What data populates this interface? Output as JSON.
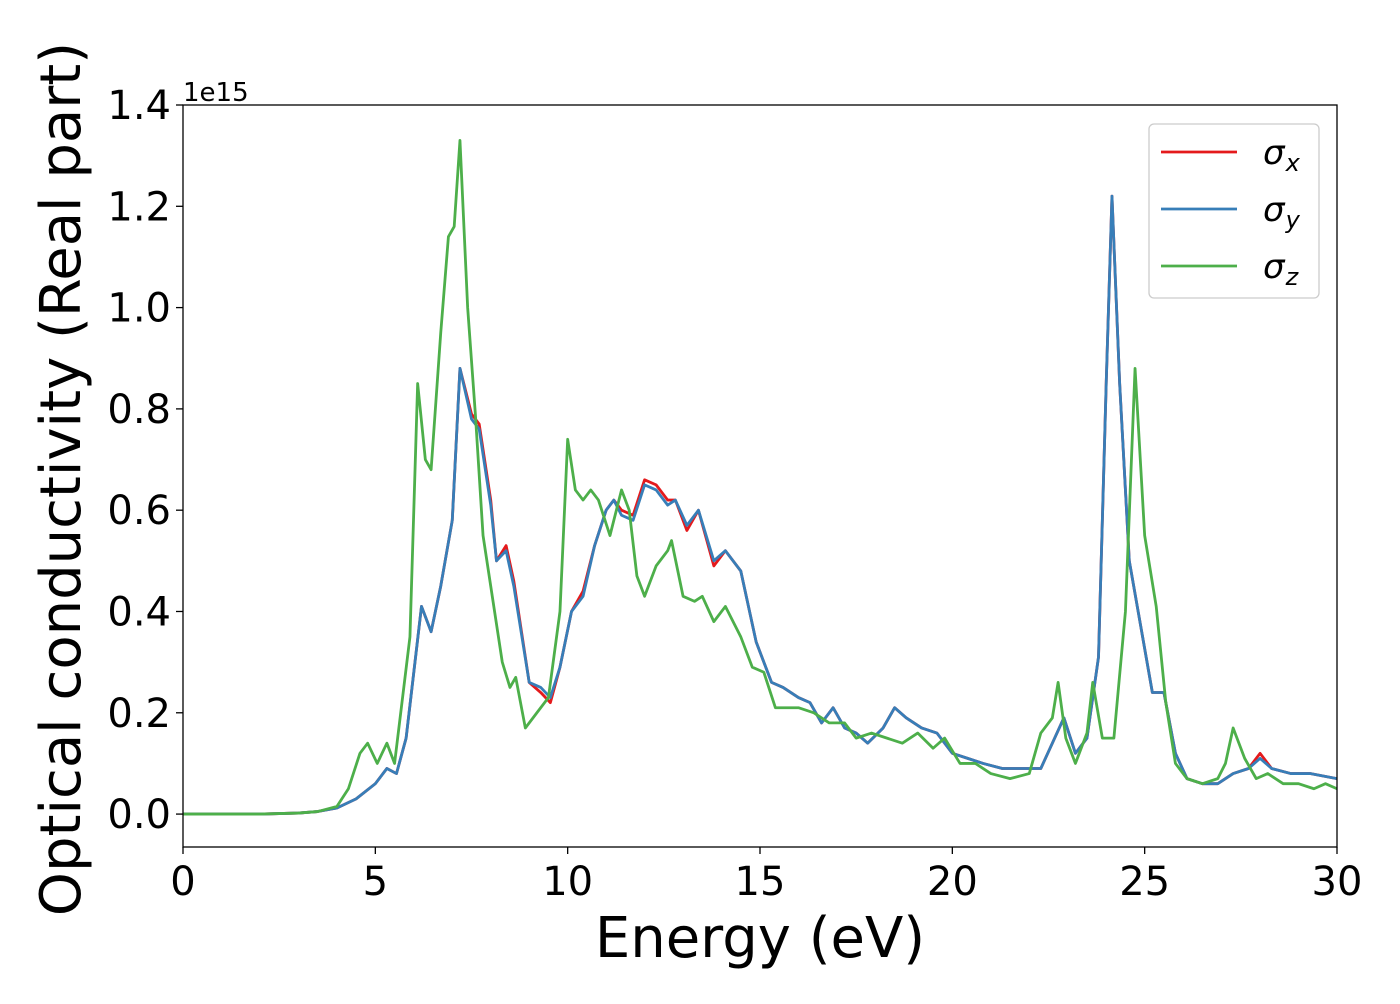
{
  "chart_data": {
    "type": "line",
    "title": "",
    "xlabel": "Energy (eV)",
    "ylabel": "Optical conductivity (Real part)",
    "y_offset_label": "1e15",
    "xlim": [
      0,
      30
    ],
    "ylim": [
      -0.065,
      1.4
    ],
    "x_ticks": [
      0,
      5,
      10,
      15,
      20,
      25,
      30
    ],
    "y_ticks": [
      0.0,
      0.2,
      0.4,
      0.6,
      0.8,
      1.0,
      1.2,
      1.4
    ],
    "y_tick_labels": [
      "0.0",
      "0.2",
      "0.4",
      "0.6",
      "0.8",
      "1.0",
      "1.2",
      "1.4"
    ],
    "grid": false,
    "legend_placement": "top-right",
    "series": [
      {
        "name": "σx",
        "legend_symbol": "σ",
        "legend_subscript": "x",
        "color": "#e41a1c",
        "points": [
          [
            0,
            0
          ],
          [
            2,
            0
          ],
          [
            3,
            0.002
          ],
          [
            3.5,
            0.005
          ],
          [
            4,
            0.012
          ],
          [
            4.5,
            0.03
          ],
          [
            5,
            0.06
          ],
          [
            5.3,
            0.09
          ],
          [
            5.55,
            0.08
          ],
          [
            5.8,
            0.15
          ],
          [
            6,
            0.28
          ],
          [
            6.2,
            0.41
          ],
          [
            6.45,
            0.36
          ],
          [
            6.7,
            0.45
          ],
          [
            7,
            0.58
          ],
          [
            7.2,
            0.88
          ],
          [
            7.5,
            0.79
          ],
          [
            7.7,
            0.77
          ],
          [
            8,
            0.62
          ],
          [
            8.15,
            0.5
          ],
          [
            8.4,
            0.53
          ],
          [
            8.6,
            0.46
          ],
          [
            9,
            0.26
          ],
          [
            9.3,
            0.24
          ],
          [
            9.55,
            0.22
          ],
          [
            9.8,
            0.29
          ],
          [
            10.1,
            0.4
          ],
          [
            10.4,
            0.44
          ],
          [
            10.7,
            0.53
          ],
          [
            11,
            0.6
          ],
          [
            11.2,
            0.62
          ],
          [
            11.4,
            0.6
          ],
          [
            11.7,
            0.59
          ],
          [
            12,
            0.66
          ],
          [
            12.3,
            0.65
          ],
          [
            12.6,
            0.62
          ],
          [
            12.8,
            0.62
          ],
          [
            13.1,
            0.56
          ],
          [
            13.4,
            0.6
          ],
          [
            13.8,
            0.49
          ],
          [
            14.1,
            0.52
          ],
          [
            14.5,
            0.48
          ],
          [
            14.9,
            0.34
          ],
          [
            15.3,
            0.26
          ],
          [
            15.6,
            0.25
          ],
          [
            16,
            0.23
          ],
          [
            16.3,
            0.22
          ],
          [
            16.6,
            0.18
          ],
          [
            16.9,
            0.21
          ],
          [
            17.2,
            0.17
          ],
          [
            17.5,
            0.16
          ],
          [
            17.8,
            0.14
          ],
          [
            18.2,
            0.17
          ],
          [
            18.5,
            0.21
          ],
          [
            18.8,
            0.19
          ],
          [
            19.2,
            0.17
          ],
          [
            19.6,
            0.16
          ],
          [
            20,
            0.12
          ],
          [
            20.4,
            0.11
          ],
          [
            20.8,
            0.1
          ],
          [
            21.3,
            0.09
          ],
          [
            21.8,
            0.09
          ],
          [
            22.3,
            0.09
          ],
          [
            22.6,
            0.14
          ],
          [
            22.9,
            0.19
          ],
          [
            23.2,
            0.12
          ],
          [
            23.5,
            0.15
          ],
          [
            23.8,
            0.31
          ],
          [
            24,
            0.85
          ],
          [
            24.15,
            1.22
          ],
          [
            24.35,
            0.85
          ],
          [
            24.6,
            0.5
          ],
          [
            24.9,
            0.37
          ],
          [
            25.2,
            0.24
          ],
          [
            25.5,
            0.24
          ],
          [
            25.8,
            0.12
          ],
          [
            26.1,
            0.07
          ],
          [
            26.5,
            0.06
          ],
          [
            26.9,
            0.06
          ],
          [
            27.3,
            0.08
          ],
          [
            27.7,
            0.09
          ],
          [
            28,
            0.12
          ],
          [
            28.3,
            0.09
          ],
          [
            28.8,
            0.08
          ],
          [
            29.3,
            0.08
          ],
          [
            30,
            0.07
          ]
        ]
      },
      {
        "name": "σy",
        "legend_symbol": "σ",
        "legend_subscript": "y",
        "color": "#377eb8",
        "points": [
          [
            0,
            0
          ],
          [
            2,
            0
          ],
          [
            3,
            0.002
          ],
          [
            3.5,
            0.005
          ],
          [
            4,
            0.012
          ],
          [
            4.5,
            0.03
          ],
          [
            5,
            0.06
          ],
          [
            5.3,
            0.09
          ],
          [
            5.55,
            0.08
          ],
          [
            5.8,
            0.15
          ],
          [
            6,
            0.28
          ],
          [
            6.2,
            0.41
          ],
          [
            6.45,
            0.36
          ],
          [
            6.7,
            0.45
          ],
          [
            7,
            0.58
          ],
          [
            7.2,
            0.88
          ],
          [
            7.5,
            0.78
          ],
          [
            7.7,
            0.76
          ],
          [
            8,
            0.61
          ],
          [
            8.15,
            0.5
          ],
          [
            8.4,
            0.52
          ],
          [
            8.6,
            0.45
          ],
          [
            9,
            0.26
          ],
          [
            9.3,
            0.25
          ],
          [
            9.55,
            0.23
          ],
          [
            9.8,
            0.29
          ],
          [
            10.1,
            0.4
          ],
          [
            10.4,
            0.43
          ],
          [
            10.7,
            0.53
          ],
          [
            11,
            0.6
          ],
          [
            11.2,
            0.62
          ],
          [
            11.4,
            0.59
          ],
          [
            11.7,
            0.58
          ],
          [
            12,
            0.65
          ],
          [
            12.3,
            0.64
          ],
          [
            12.6,
            0.61
          ],
          [
            12.8,
            0.62
          ],
          [
            13.1,
            0.57
          ],
          [
            13.4,
            0.6
          ],
          [
            13.8,
            0.5
          ],
          [
            14.1,
            0.52
          ],
          [
            14.5,
            0.48
          ],
          [
            14.9,
            0.34
          ],
          [
            15.3,
            0.26
          ],
          [
            15.6,
            0.25
          ],
          [
            16,
            0.23
          ],
          [
            16.3,
            0.22
          ],
          [
            16.6,
            0.18
          ],
          [
            16.9,
            0.21
          ],
          [
            17.2,
            0.17
          ],
          [
            17.5,
            0.16
          ],
          [
            17.8,
            0.14
          ],
          [
            18.2,
            0.17
          ],
          [
            18.5,
            0.21
          ],
          [
            18.8,
            0.19
          ],
          [
            19.2,
            0.17
          ],
          [
            19.6,
            0.16
          ],
          [
            20,
            0.12
          ],
          [
            20.4,
            0.11
          ],
          [
            20.8,
            0.1
          ],
          [
            21.3,
            0.09
          ],
          [
            21.8,
            0.09
          ],
          [
            22.3,
            0.09
          ],
          [
            22.6,
            0.14
          ],
          [
            22.9,
            0.19
          ],
          [
            23.2,
            0.12
          ],
          [
            23.5,
            0.15
          ],
          [
            23.8,
            0.31
          ],
          [
            24,
            0.85
          ],
          [
            24.15,
            1.22
          ],
          [
            24.35,
            0.85
          ],
          [
            24.6,
            0.5
          ],
          [
            24.9,
            0.37
          ],
          [
            25.2,
            0.24
          ],
          [
            25.5,
            0.24
          ],
          [
            25.8,
            0.12
          ],
          [
            26.1,
            0.07
          ],
          [
            26.5,
            0.06
          ],
          [
            26.9,
            0.06
          ],
          [
            27.3,
            0.08
          ],
          [
            27.7,
            0.09
          ],
          [
            28,
            0.11
          ],
          [
            28.3,
            0.09
          ],
          [
            28.8,
            0.08
          ],
          [
            29.3,
            0.08
          ],
          [
            30,
            0.07
          ]
        ]
      },
      {
        "name": "σz",
        "legend_symbol": "σ",
        "legend_subscript": "z",
        "color": "#4daf4a",
        "points": [
          [
            0,
            0
          ],
          [
            2,
            0
          ],
          [
            3,
            0.002
          ],
          [
            3.5,
            0.005
          ],
          [
            4,
            0.015
          ],
          [
            4.3,
            0.05
          ],
          [
            4.6,
            0.12
          ],
          [
            4.8,
            0.14
          ],
          [
            5.05,
            0.1
          ],
          [
            5.3,
            0.14
          ],
          [
            5.5,
            0.1
          ],
          [
            5.9,
            0.35
          ],
          [
            6.1,
            0.85
          ],
          [
            6.3,
            0.7
          ],
          [
            6.45,
            0.68
          ],
          [
            6.7,
            0.95
          ],
          [
            6.9,
            1.14
          ],
          [
            7.05,
            1.16
          ],
          [
            7.2,
            1.33
          ],
          [
            7.4,
            1.0
          ],
          [
            7.6,
            0.79
          ],
          [
            7.8,
            0.55
          ],
          [
            8.1,
            0.4
          ],
          [
            8.3,
            0.3
          ],
          [
            8.5,
            0.25
          ],
          [
            8.65,
            0.27
          ],
          [
            8.9,
            0.17
          ],
          [
            9.2,
            0.2
          ],
          [
            9.5,
            0.23
          ],
          [
            9.8,
            0.4
          ],
          [
            10,
            0.74
          ],
          [
            10.2,
            0.64
          ],
          [
            10.4,
            0.62
          ],
          [
            10.6,
            0.64
          ],
          [
            10.8,
            0.62
          ],
          [
            11.1,
            0.55
          ],
          [
            11.4,
            0.64
          ],
          [
            11.6,
            0.6
          ],
          [
            11.8,
            0.47
          ],
          [
            12,
            0.43
          ],
          [
            12.3,
            0.49
          ],
          [
            12.6,
            0.52
          ],
          [
            12.7,
            0.54
          ],
          [
            13,
            0.43
          ],
          [
            13.3,
            0.42
          ],
          [
            13.5,
            0.43
          ],
          [
            13.8,
            0.38
          ],
          [
            14.1,
            0.41
          ],
          [
            14.5,
            0.35
          ],
          [
            14.8,
            0.29
          ],
          [
            15.1,
            0.28
          ],
          [
            15.4,
            0.21
          ],
          [
            15.7,
            0.21
          ],
          [
            16,
            0.21
          ],
          [
            16.4,
            0.2
          ],
          [
            16.8,
            0.18
          ],
          [
            17.2,
            0.18
          ],
          [
            17.5,
            0.15
          ],
          [
            17.9,
            0.16
          ],
          [
            18.3,
            0.15
          ],
          [
            18.7,
            0.14
          ],
          [
            19.1,
            0.16
          ],
          [
            19.5,
            0.13
          ],
          [
            19.8,
            0.15
          ],
          [
            20.2,
            0.1
          ],
          [
            20.6,
            0.1
          ],
          [
            21,
            0.08
          ],
          [
            21.5,
            0.07
          ],
          [
            22,
            0.08
          ],
          [
            22.3,
            0.16
          ],
          [
            22.6,
            0.19
          ],
          [
            22.75,
            0.26
          ],
          [
            22.95,
            0.15
          ],
          [
            23.2,
            0.1
          ],
          [
            23.5,
            0.16
          ],
          [
            23.65,
            0.26
          ],
          [
            23.9,
            0.15
          ],
          [
            24.2,
            0.15
          ],
          [
            24.5,
            0.4
          ],
          [
            24.75,
            0.88
          ],
          [
            25,
            0.55
          ],
          [
            25.3,
            0.41
          ],
          [
            25.55,
            0.22
          ],
          [
            25.8,
            0.1
          ],
          [
            26.1,
            0.07
          ],
          [
            26.5,
            0.06
          ],
          [
            26.9,
            0.07
          ],
          [
            27.1,
            0.1
          ],
          [
            27.3,
            0.17
          ],
          [
            27.6,
            0.11
          ],
          [
            27.9,
            0.07
          ],
          [
            28.2,
            0.08
          ],
          [
            28.6,
            0.06
          ],
          [
            29,
            0.06
          ],
          [
            29.4,
            0.05
          ],
          [
            29.7,
            0.06
          ],
          [
            30,
            0.05
          ]
        ]
      }
    ]
  }
}
